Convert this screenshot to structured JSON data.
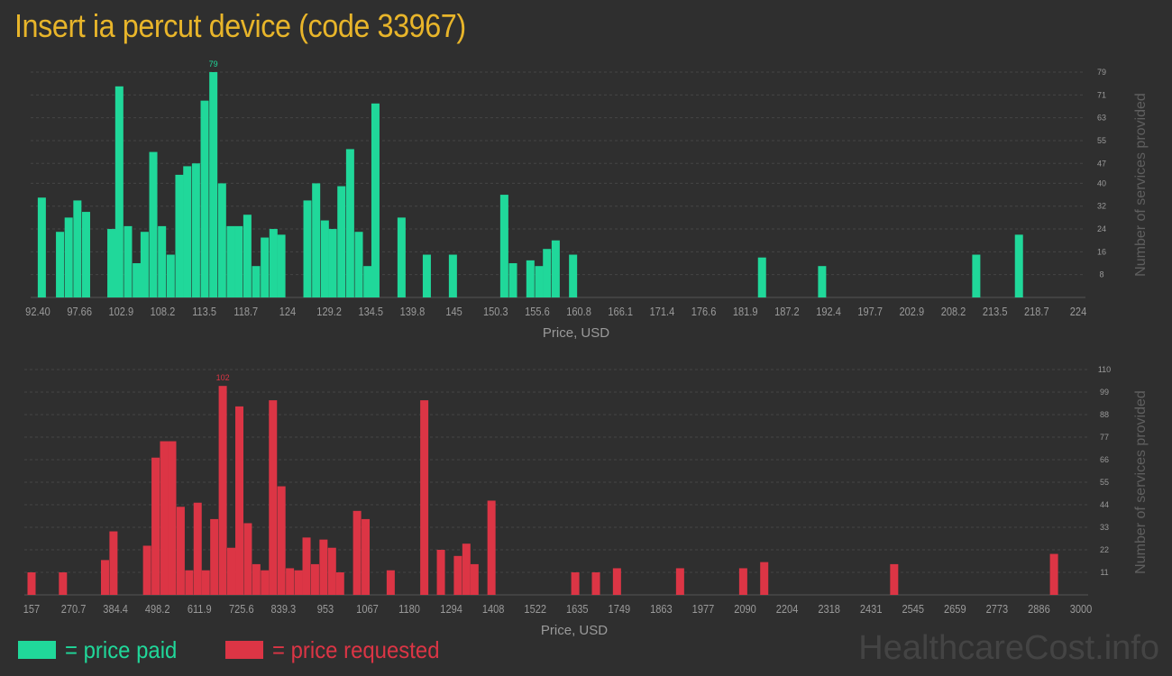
{
  "title": "Insert ia percut device (code 33967)",
  "colors": {
    "background": "#2f2f2f",
    "paid": "#20d89a",
    "requested": "#dc3545",
    "title": "#e8b52a",
    "axis_text": "#9a9a9a",
    "grid": "#454545"
  },
  "legend": {
    "paid_label": "= price paid",
    "requested_label": "= price requested"
  },
  "watermark": "HealthcareCost.info",
  "chart_data": [
    {
      "type": "bar",
      "name": "price paid",
      "xlabel": "Price, USD",
      "ylabel": "Number of services provided",
      "ylim": [
        0,
        79
      ],
      "yticks": [
        8,
        16,
        24,
        32,
        40,
        47,
        55,
        63,
        71,
        79
      ],
      "x_tick_labels": [
        "92.40",
        "97.66",
        "102.9",
        "108.2",
        "113.5",
        "118.7",
        "124",
        "129.2",
        "134.5",
        "139.8",
        "145",
        "150.3",
        "155.6",
        "160.8",
        "166.1",
        "171.4",
        "176.6",
        "181.9",
        "187.2",
        "192.4",
        "197.7",
        "202.9",
        "208.2",
        "213.5",
        "218.7",
        "224"
      ],
      "x_range": [
        92.4,
        224
      ],
      "max_label": "79",
      "bars": [
        {
          "x": 92.9,
          "y": 35
        },
        {
          "x": 95.2,
          "y": 23
        },
        {
          "x": 96.3,
          "y": 28
        },
        {
          "x": 97.4,
          "y": 34
        },
        {
          "x": 98.5,
          "y": 30
        },
        {
          "x": 101.7,
          "y": 24
        },
        {
          "x": 102.7,
          "y": 74
        },
        {
          "x": 103.8,
          "y": 25
        },
        {
          "x": 104.9,
          "y": 12
        },
        {
          "x": 105.9,
          "y": 23
        },
        {
          "x": 107.0,
          "y": 51
        },
        {
          "x": 108.1,
          "y": 25
        },
        {
          "x": 109.2,
          "y": 15
        },
        {
          "x": 110.3,
          "y": 43
        },
        {
          "x": 111.3,
          "y": 46
        },
        {
          "x": 112.4,
          "y": 47
        },
        {
          "x": 113.5,
          "y": 69
        },
        {
          "x": 114.6,
          "y": 79
        },
        {
          "x": 115.7,
          "y": 40
        },
        {
          "x": 116.8,
          "y": 25
        },
        {
          "x": 117.8,
          "y": 25
        },
        {
          "x": 118.9,
          "y": 29
        },
        {
          "x": 120.0,
          "y": 11
        },
        {
          "x": 121.1,
          "y": 21
        },
        {
          "x": 122.2,
          "y": 24
        },
        {
          "x": 123.2,
          "y": 22
        },
        {
          "x": 126.5,
          "y": 34
        },
        {
          "x": 127.6,
          "y": 40
        },
        {
          "x": 128.7,
          "y": 27
        },
        {
          "x": 129.7,
          "y": 24
        },
        {
          "x": 130.8,
          "y": 39
        },
        {
          "x": 131.9,
          "y": 52
        },
        {
          "x": 133.0,
          "y": 23
        },
        {
          "x": 134.1,
          "y": 11
        },
        {
          "x": 135.1,
          "y": 68
        },
        {
          "x": 138.4,
          "y": 28
        },
        {
          "x": 141.6,
          "y": 15
        },
        {
          "x": 144.9,
          "y": 15
        },
        {
          "x": 151.4,
          "y": 36
        },
        {
          "x": 152.5,
          "y": 12
        },
        {
          "x": 154.7,
          "y": 13
        },
        {
          "x": 155.8,
          "y": 11
        },
        {
          "x": 156.8,
          "y": 17
        },
        {
          "x": 157.9,
          "y": 20
        },
        {
          "x": 160.1,
          "y": 15
        },
        {
          "x": 184.0,
          "y": 14
        },
        {
          "x": 191.6,
          "y": 11
        },
        {
          "x": 211.1,
          "y": 15
        },
        {
          "x": 216.5,
          "y": 22
        }
      ]
    },
    {
      "type": "bar",
      "name": "price requested",
      "xlabel": "Price, USD",
      "ylabel": "Number of services provided",
      "ylim": [
        0,
        110
      ],
      "yticks": [
        11,
        22,
        33,
        44,
        55,
        66,
        77,
        88,
        99,
        110
      ],
      "x_tick_labels": [
        "157",
        "270.7",
        "384.4",
        "498.2",
        "611.9",
        "725.6",
        "839.3",
        "953",
        "1067",
        "1180",
        "1294",
        "1408",
        "1522",
        "1635",
        "1749",
        "1863",
        "1977",
        "2090",
        "2204",
        "2318",
        "2431",
        "2545",
        "2659",
        "2773",
        "2886",
        "3000"
      ],
      "x_range": [
        157,
        3000
      ],
      "max_label": "102",
      "bars": [
        {
          "x": 157,
          "y": 11
        },
        {
          "x": 242,
          "y": 11
        },
        {
          "x": 356,
          "y": 17
        },
        {
          "x": 379,
          "y": 31
        },
        {
          "x": 470,
          "y": 24
        },
        {
          "x": 493,
          "y": 67
        },
        {
          "x": 516,
          "y": 75
        },
        {
          "x": 538,
          "y": 75
        },
        {
          "x": 561,
          "y": 43
        },
        {
          "x": 584,
          "y": 12
        },
        {
          "x": 607,
          "y": 45
        },
        {
          "x": 629,
          "y": 12
        },
        {
          "x": 652,
          "y": 37
        },
        {
          "x": 675,
          "y": 102
        },
        {
          "x": 698,
          "y": 23
        },
        {
          "x": 720,
          "y": 92
        },
        {
          "x": 743,
          "y": 35
        },
        {
          "x": 766,
          "y": 15
        },
        {
          "x": 789,
          "y": 12
        },
        {
          "x": 811,
          "y": 95
        },
        {
          "x": 834,
          "y": 53
        },
        {
          "x": 857,
          "y": 13
        },
        {
          "x": 880,
          "y": 12
        },
        {
          "x": 902,
          "y": 28
        },
        {
          "x": 925,
          "y": 15
        },
        {
          "x": 948,
          "y": 27
        },
        {
          "x": 971,
          "y": 23
        },
        {
          "x": 993,
          "y": 11
        },
        {
          "x": 1039,
          "y": 41
        },
        {
          "x": 1062,
          "y": 37
        },
        {
          "x": 1130,
          "y": 12
        },
        {
          "x": 1221,
          "y": 95
        },
        {
          "x": 1266,
          "y": 22
        },
        {
          "x": 1312,
          "y": 19
        },
        {
          "x": 1335,
          "y": 25
        },
        {
          "x": 1357,
          "y": 15
        },
        {
          "x": 1403,
          "y": 46
        },
        {
          "x": 1630,
          "y": 11
        },
        {
          "x": 1686,
          "y": 11
        },
        {
          "x": 1743,
          "y": 13
        },
        {
          "x": 1914,
          "y": 13
        },
        {
          "x": 2085,
          "y": 13
        },
        {
          "x": 2142,
          "y": 16
        },
        {
          "x": 2494,
          "y": 15
        },
        {
          "x": 2927,
          "y": 20
        }
      ]
    }
  ]
}
